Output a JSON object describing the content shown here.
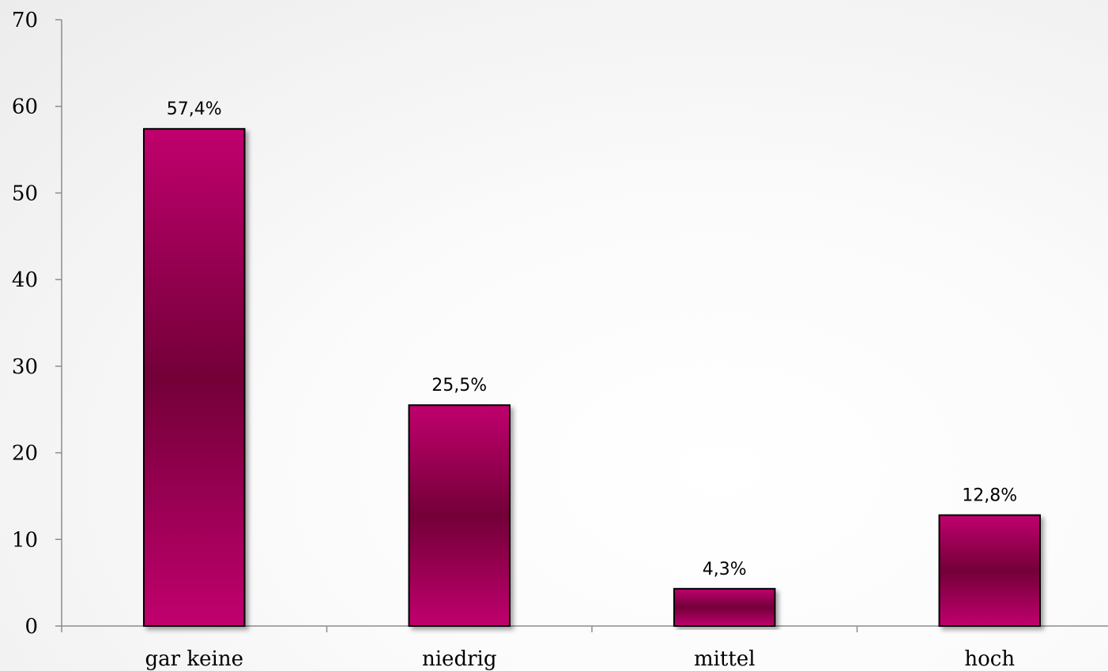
{
  "chart_data": {
    "type": "bar",
    "categories": [
      "gar keine",
      "niedrig",
      "mittel",
      "hoch"
    ],
    "values": [
      57.4,
      25.5,
      4.3,
      12.8
    ],
    "data_labels": [
      "57,4%",
      "25,5%",
      "4,3%",
      "12,8%"
    ],
    "title": "",
    "xlabel": "",
    "ylabel": "",
    "ylim": [
      0,
      70
    ],
    "yticks": [
      0,
      10,
      20,
      30,
      40,
      50,
      60,
      70
    ],
    "grid": false,
    "legend": "none",
    "colors": {
      "bar_light": "#c0066e",
      "bar_dark": "#730038",
      "bar_outline": "#000000"
    }
  }
}
